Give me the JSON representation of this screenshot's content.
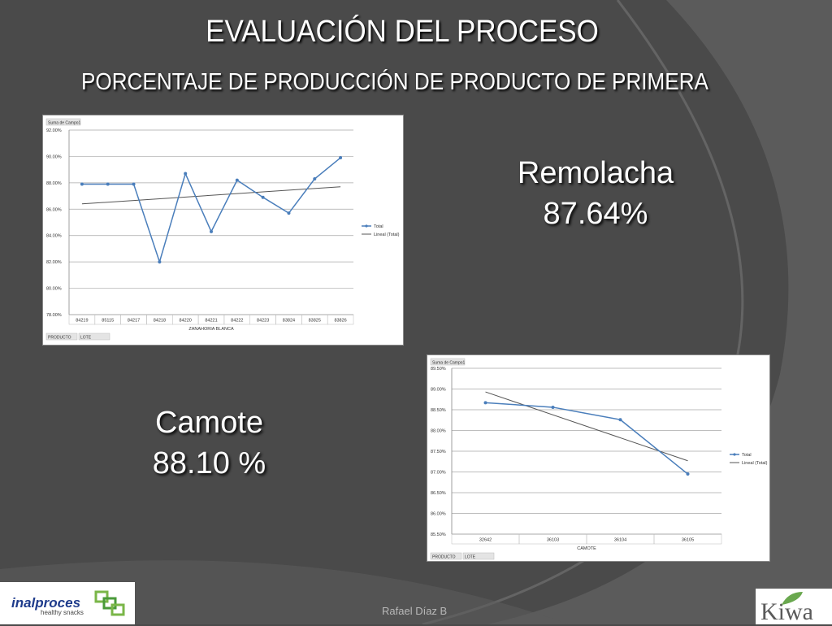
{
  "slide": {
    "title": "EVALUACIÓN DEL PROCESO",
    "subtitle": "PORCENTAJE DE PRODUCCIÓN DE PRODUCTO DE PRIMERA",
    "remolacha": {
      "name": "Remolacha",
      "value": "87.64%"
    },
    "camote": {
      "name": "Camote",
      "value": "88.10 %"
    },
    "author": "Rafael Díaz B",
    "logo_left": {
      "name": "inalproces",
      "tagline": "healthy snacks"
    },
    "logo_right": {
      "name": "Kiwa"
    }
  },
  "chart_data": [
    {
      "type": "line",
      "pivot_field": "Suma de Campo1",
      "filter_buttons": [
        "PRODUCTO",
        "LOTE"
      ],
      "xlabel": "ZANAHORIA BLANCA",
      "ylabel": "",
      "categories": [
        "84219",
        "85115",
        "84217",
        "84218",
        "84220",
        "84221",
        "84222",
        "84223",
        "83824",
        "83825",
        "83826"
      ],
      "series": [
        {
          "name": "Total",
          "values": [
            87.9,
            87.9,
            87.9,
            82.0,
            88.7,
            84.3,
            88.2,
            86.9,
            85.7,
            88.3,
            89.9
          ]
        },
        {
          "name": "Lineal (Total)",
          "trend": [
            86.4,
            87.7
          ]
        }
      ],
      "ylim": [
        78,
        92
      ],
      "yticks": [
        "78.00%",
        "80.00%",
        "82.00%",
        "84.00%",
        "86.00%",
        "88.00%",
        "90.00%",
        "92.00%"
      ],
      "grid": true,
      "legend": "right",
      "colors": {
        "Total": "#4a7ebb",
        "Lineal (Total)": "#555555"
      }
    },
    {
      "type": "line",
      "pivot_field": "Suma de Campo1",
      "filter_buttons": [
        "PRODUCTO",
        "LOTE"
      ],
      "xlabel": "CAMOTE",
      "ylabel": "",
      "categories": [
        "32642",
        "36103",
        "36104",
        "36105"
      ],
      "series": [
        {
          "name": "Total",
          "values": [
            88.67,
            88.56,
            88.26,
            86.95
          ]
        },
        {
          "name": "Lineal (Total)",
          "trend": [
            88.93,
            87.27
          ]
        }
      ],
      "ylim": [
        85.5,
        89.5
      ],
      "yticks": [
        "85.50%",
        "86.00%",
        "86.50%",
        "87.00%",
        "87.50%",
        "88.00%",
        "88.50%",
        "89.00%",
        "89.50%"
      ],
      "grid": true,
      "legend": "right",
      "colors": {
        "Total": "#4a7ebb",
        "Lineal (Total)": "#555555"
      }
    }
  ]
}
